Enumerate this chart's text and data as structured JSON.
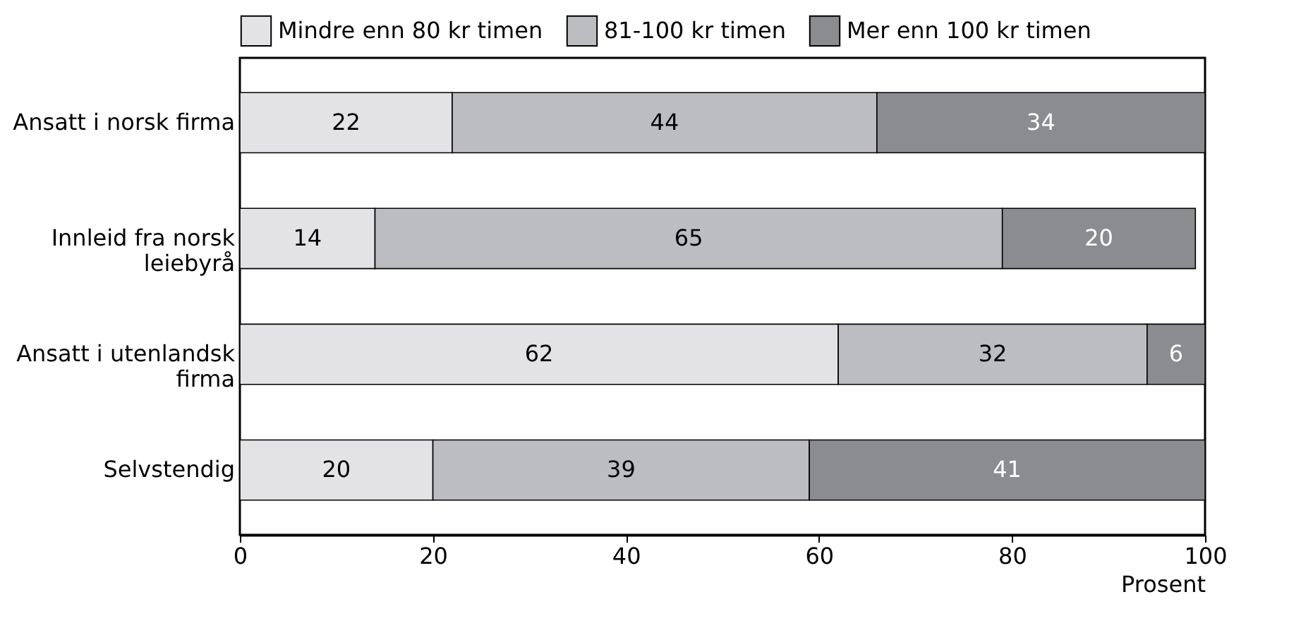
{
  "chart_data": {
    "type": "bar",
    "orientation": "horizontal",
    "stacked": true,
    "data_labels": true,
    "legend": "top",
    "grid": false,
    "xlabel": "Prosent",
    "categories": [
      "Ansatt i norsk firma",
      "Innleid fra norsk\nleiebyrå",
      "Ansatt i utenlandsk\nfirma",
      "Selvstendig"
    ],
    "series": [
      {
        "name": "Mindre enn 80 kr timen",
        "color": "#e3e3e5",
        "values": [
          22,
          14,
          62,
          20
        ]
      },
      {
        "name": "81-100 kr timen",
        "color": "#bcbdc0",
        "values": [
          44,
          65,
          32,
          39
        ]
      },
      {
        "name": "Mer enn 100 kr timen",
        "color": "#8b8c90",
        "values": [
          34,
          20,
          6,
          41
        ]
      }
    ],
    "xlim": [
      0,
      100
    ],
    "xticks": [
      0,
      20,
      40,
      60,
      80,
      100
    ]
  }
}
